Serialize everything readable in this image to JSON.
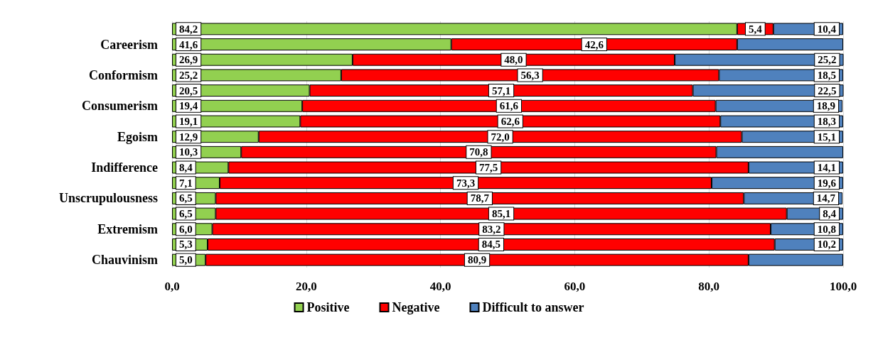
{
  "chart_data": {
    "type": "bar",
    "orientation": "horizontal",
    "stacked": true,
    "categories": [
      null,
      "Careerism",
      null,
      "Conformism",
      null,
      "Consumerism",
      null,
      "Egoism",
      null,
      "Indifference",
      null,
      "Unscrupulousness",
      null,
      "Extremism",
      null,
      "Chauvinism"
    ],
    "series": [
      {
        "name": "Positive",
        "color": "#92d050",
        "values": [
          84.2,
          41.6,
          26.9,
          25.2,
          20.5,
          19.4,
          19.1,
          12.9,
          10.3,
          8.4,
          7.1,
          6.5,
          6.5,
          6.0,
          5.3,
          5.0
        ],
        "value_labels": [
          "84,2",
          "41,6",
          "26,9",
          "25,2",
          "20,5",
          "19,4",
          "19,1",
          "12,9",
          "10,3",
          "8,4",
          "7,1",
          "6,5",
          "6,5",
          "6,0",
          "5,3",
          "5,0"
        ]
      },
      {
        "name": "Negative",
        "color": "#ff0000",
        "values": [
          5.4,
          42.6,
          48.0,
          56.3,
          57.1,
          61.6,
          62.6,
          72.0,
          70.8,
          77.5,
          73.3,
          78.7,
          85.1,
          83.2,
          84.5,
          80.9
        ],
        "value_labels": [
          "5,4",
          "42,6",
          "48,0",
          "56,3",
          "57,1",
          "61,6",
          "62,6",
          "72,0",
          "70,8",
          "77,5",
          "73,3",
          "78,7",
          "85,1",
          "83,2",
          "84,5",
          "80,9"
        ]
      },
      {
        "name": "Difficult to answer",
        "color": "#4f81bd",
        "values": [
          10.4,
          15.8,
          25.2,
          18.5,
          22.5,
          18.9,
          18.3,
          15.1,
          18.9,
          14.1,
          19.6,
          14.7,
          8.4,
          10.8,
          10.2,
          14.1
        ],
        "value_labels": [
          "10,4",
          null,
          "25,2",
          "18,5",
          "22,5",
          "18,9",
          "18,3",
          "15,1",
          null,
          "14,1",
          "19,6",
          "14,7",
          "8,4",
          "10,8",
          "10,2",
          null
        ]
      }
    ],
    "xlim": [
      0,
      100
    ],
    "xticks": [
      {
        "value": 0,
        "label": "0,0"
      },
      {
        "value": 20,
        "label": "20,0"
      },
      {
        "value": 40,
        "label": "40,0"
      },
      {
        "value": 60,
        "label": "60,0"
      },
      {
        "value": 80,
        "label": "80,0"
      },
      {
        "value": 100,
        "label": "100,0"
      }
    ],
    "grid": "x",
    "legend": "bottom"
  }
}
